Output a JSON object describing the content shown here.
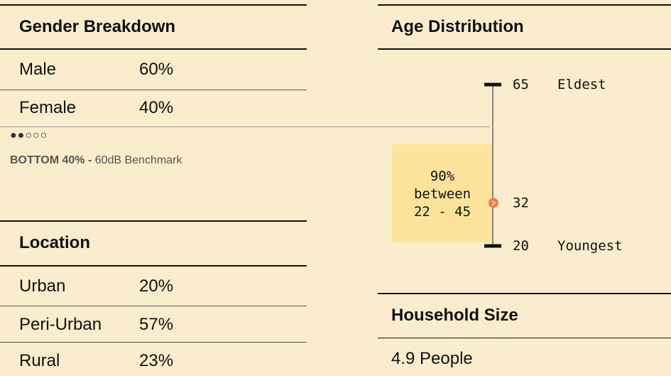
{
  "gender": {
    "title": "Gender Breakdown",
    "rows": [
      [
        "Male",
        "60%"
      ],
      [
        "Female",
        "40%"
      ]
    ],
    "rating": "●●○○○",
    "note_bold": "BOTTOM 40% -",
    "note": "60dB Benchmark"
  },
  "location": {
    "title": "Location",
    "rows": [
      [
        "Urban",
        "20%"
      ],
      [
        "Peri-Urban",
        "57%"
      ],
      [
        "Rural",
        "23%"
      ]
    ]
  },
  "age": {
    "title": "Age Distribution",
    "values": [
      65,
      32,
      20
    ],
    "names": [
      "Eldest",
      null,
      "Youngest"
    ],
    "range_share": "90%",
    "range_word": "between",
    "range_text": "22 - 45"
  },
  "household": {
    "title": "Household Size",
    "value": "4.9 People"
  }
}
